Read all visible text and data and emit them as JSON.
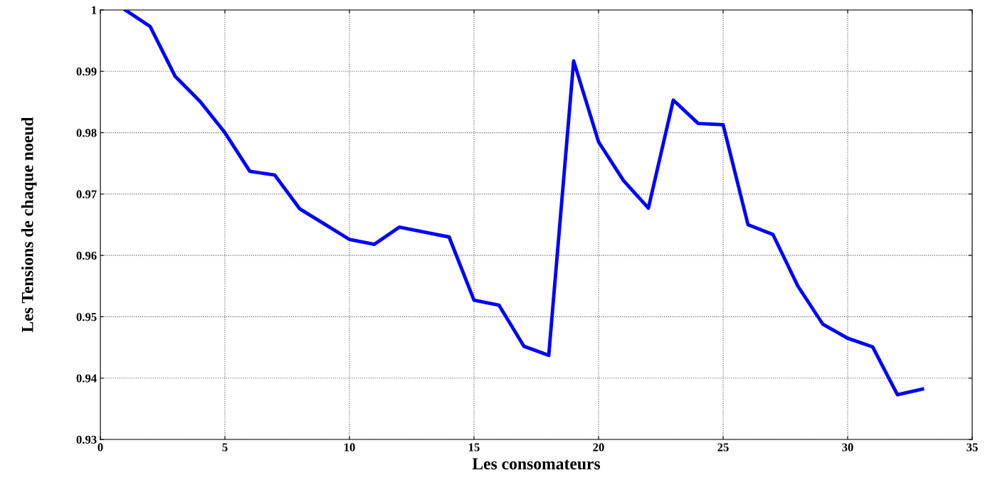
{
  "chart_data": {
    "type": "line",
    "xlabel": "Les consomateurs",
    "ylabel": "Les Tensions de chaque noeud",
    "x": [
      1,
      2,
      3,
      4,
      5,
      6,
      7,
      8,
      9,
      10,
      11,
      12,
      13,
      14,
      15,
      16,
      17,
      18,
      19,
      20,
      21,
      22,
      23,
      24,
      25,
      26,
      27,
      28,
      29,
      30,
      31,
      32,
      33
    ],
    "series": [
      {
        "color": "#0000ff",
        "values": [
          1.0,
          0.9973,
          0.9892,
          0.9851,
          0.98,
          0.9737,
          0.9731,
          0.9676,
          0.9651,
          0.9626,
          0.9618,
          0.9646,
          0.9638,
          0.963,
          0.9527,
          0.9519,
          0.9452,
          0.9437,
          0.9917,
          0.9785,
          0.9722,
          0.9677,
          0.9853,
          0.9815,
          0.9813,
          0.965,
          0.9634,
          0.955,
          0.9488,
          0.9465,
          0.9451,
          0.9373,
          0.9382
        ]
      }
    ],
    "xlim": [
      0,
      35
    ],
    "xticks": [
      0,
      5,
      10,
      15,
      20,
      25,
      30,
      35
    ],
    "ylim": [
      0.93,
      1
    ],
    "yticks": [
      0.93,
      0.94,
      0.95,
      0.96,
      0.97,
      0.98,
      0.99,
      1
    ],
    "grid": true,
    "line_style": "solid"
  }
}
